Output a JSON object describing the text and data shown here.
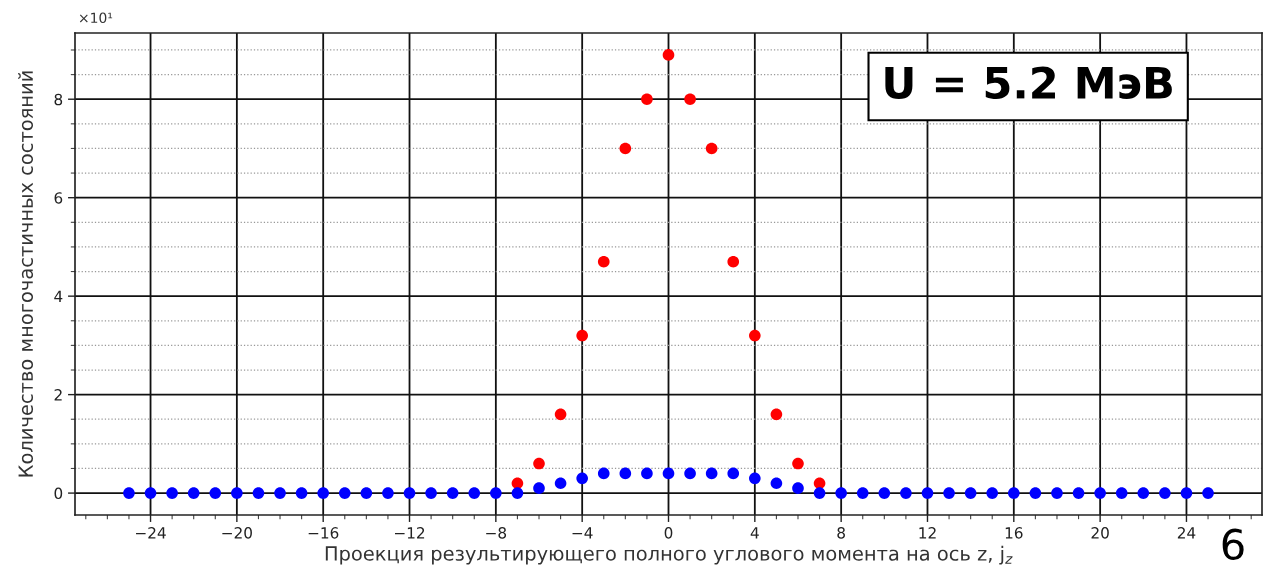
{
  "chart_data": {
    "type": "scatter",
    "xlabel": "Проекция результирующего полного углового момента на ось z, j$_{z}$",
    "ylabel": "Количество многочастичных состояний",
    "annotations": [
      "U = 5.2 МэВ",
      "×10¹",
      "6"
    ],
    "x": [
      -25,
      -24,
      -23,
      -22,
      -21,
      -20,
      -19,
      -18,
      -17,
      -16,
      -15,
      -14,
      -13,
      -12,
      -11,
      -10,
      -9,
      -8,
      -7,
      -6,
      -5,
      -4,
      -3,
      -2,
      -1,
      0,
      1,
      2,
      3,
      4,
      5,
      6,
      7,
      8,
      9,
      10,
      11,
      12,
      13,
      14,
      15,
      16,
      17,
      18,
      19,
      20,
      21,
      22,
      23,
      24,
      25
    ],
    "series": [
      {
        "color": "#ff0000",
        "x": [
          -7,
          -6,
          -5,
          -4,
          -3,
          -2,
          -1,
          0,
          1,
          2,
          3,
          4,
          5,
          6,
          7
        ],
        "values": [
          0.2,
          0.6,
          1.6,
          3.2,
          4.7,
          7.0,
          8.0,
          8.9,
          8.0,
          7.0,
          4.7,
          3.2,
          1.6,
          0.6,
          0.2
        ]
      },
      {
        "color": "#0000ff",
        "values": [
          0,
          0,
          0,
          0,
          0,
          0,
          0,
          0,
          0,
          0,
          0,
          0,
          0,
          0,
          0,
          0,
          0,
          0,
          0,
          0.1,
          0.2,
          0.3,
          0.4,
          0.4,
          0.4,
          0.4,
          0.4,
          0.4,
          0.4,
          0.3,
          0.2,
          0.1,
          0,
          0,
          0,
          0,
          0,
          0,
          0,
          0,
          0,
          0,
          0,
          0,
          0,
          0,
          0,
          0,
          0,
          0,
          0
        ]
      }
    ],
    "xlim": [
      -27.5,
      27.5
    ],
    "ylim": [
      -0.445,
      9.345
    ],
    "xticks": [
      {
        "value": -27,
        "label": null
      },
      {
        "value": -26,
        "label": null
      },
      {
        "value": -25,
        "label": null
      },
      -24,
      {
        "value": -23,
        "label": null
      },
      {
        "value": -22,
        "label": null
      },
      {
        "value": -21,
        "label": null
      },
      -20,
      {
        "value": -19,
        "label": null
      },
      {
        "value": -18,
        "label": null
      },
      {
        "value": -17,
        "label": null
      },
      -16,
      {
        "value": -15,
        "label": null
      },
      {
        "value": -14,
        "label": null
      },
      {
        "value": -13,
        "label": null
      },
      -12,
      {
        "value": -11,
        "label": null
      },
      {
        "value": -10,
        "label": null
      },
      {
        "value": -9,
        "label": null
      },
      -8,
      {
        "value": -7,
        "label": null
      },
      {
        "value": -6,
        "label": null
      },
      {
        "value": -5,
        "label": null
      },
      -4,
      {
        "value": -3,
        "label": null
      },
      {
        "value": -2,
        "label": null
      },
      {
        "value": -1,
        "label": null
      },
      0,
      {
        "value": 1,
        "label": null
      },
      {
        "value": 2,
        "label": null
      },
      {
        "value": 3,
        "label": null
      },
      4,
      {
        "value": 5,
        "label": null
      },
      {
        "value": 6,
        "label": null
      },
      {
        "value": 7,
        "label": null
      },
      8,
      {
        "value": 9,
        "label": null
      },
      {
        "value": 10,
        "label": null
      },
      {
        "value": 11,
        "label": null
      },
      12,
      {
        "value": 13,
        "label": null
      },
      {
        "value": 14,
        "label": null
      },
      {
        "value": 15,
        "label": null
      },
      16,
      {
        "value": 17,
        "label": null
      },
      {
        "value": 18,
        "label": null
      },
      {
        "value": 19,
        "label": null
      },
      20,
      {
        "value": 21,
        "label": null
      },
      {
        "value": 22,
        "label": null
      },
      {
        "value": 23,
        "label": null
      },
      24,
      {
        "value": 25,
        "label": null
      },
      {
        "value": 26,
        "label": null
      },
      {
        "value": 27,
        "label": null
      }
    ],
    "yticks": [
      0,
      {
        "value": 0.5,
        "label": null
      },
      {
        "value": 1,
        "label": null
      },
      {
        "value": 1.5,
        "label": null
      },
      2,
      {
        "value": 2.5,
        "label": null
      },
      {
        "value": 3,
        "label": null
      },
      {
        "value": 3.5,
        "label": null
      },
      4,
      {
        "value": 4.5,
        "label": null
      },
      {
        "value": 5,
        "label": null
      },
      {
        "value": 5.5,
        "label": null
      },
      6,
      {
        "value": 6.5,
        "label": null
      },
      {
        "value": 7,
        "label": null
      },
      {
        "value": 7.5,
        "label": null
      },
      8,
      {
        "value": 8.5,
        "label": null
      },
      {
        "value": 9,
        "label": null
      }
    ],
    "grid": true,
    "marker": "circle"
  }
}
